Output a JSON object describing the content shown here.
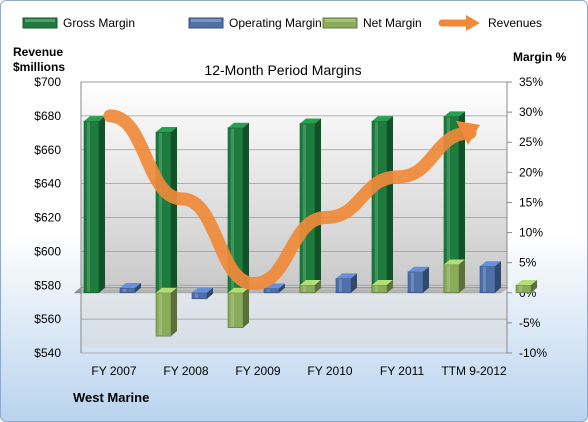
{
  "company": "West Marine",
  "chart_data": {
    "type": "bar",
    "title": "12-Month Period Margins",
    "ylabel_left": [
      "Revenue",
      "$millions"
    ],
    "ylabel_right": "Margin %",
    "categories": [
      "FY 2007",
      "FY 2008",
      "FY 2009",
      "FY 2010",
      "FY 2011",
      "TTM 9-2012"
    ],
    "y_left": {
      "min": 540,
      "max": 700,
      "ticks": [
        "$540",
        "$560",
        "$580",
        "$600",
        "$620",
        "$640",
        "$660",
        "$680",
        "$700"
      ]
    },
    "y_right": {
      "min": -10,
      "max": 35,
      "ticks": [
        "-10%",
        "-5%",
        "0%",
        "5%",
        "10%",
        "15%",
        "20%",
        "25%",
        "30%",
        "35%"
      ]
    },
    "series": [
      {
        "name": "Gross Margin",
        "axis": "right",
        "kind": "bar3d",
        "color": "#1e7b3e",
        "values": [
          28.5,
          26.7,
          27.4,
          28.1,
          28.5,
          29.3
        ]
      },
      {
        "name": "Operating Margin",
        "axis": "right",
        "kind": "bar3d",
        "color": "#4f6fa8",
        "values": [
          0.8,
          -1.0,
          0.7,
          2.4,
          3.5,
          4.4
        ]
      },
      {
        "name": "Net Margin",
        "axis": "right",
        "kind": "bar3d",
        "color": "#8aab5a",
        "values": [
          -7.2,
          -5.8,
          1.3,
          1.3,
          4.7,
          1.3
        ]
      },
      {
        "name": "Revenues",
        "axis": "left",
        "kind": "line",
        "color": "#ef8a3a",
        "values": [
          680,
          631,
          581,
          620,
          644,
          670
        ]
      }
    ],
    "legend_position": "top",
    "grid": true
  }
}
